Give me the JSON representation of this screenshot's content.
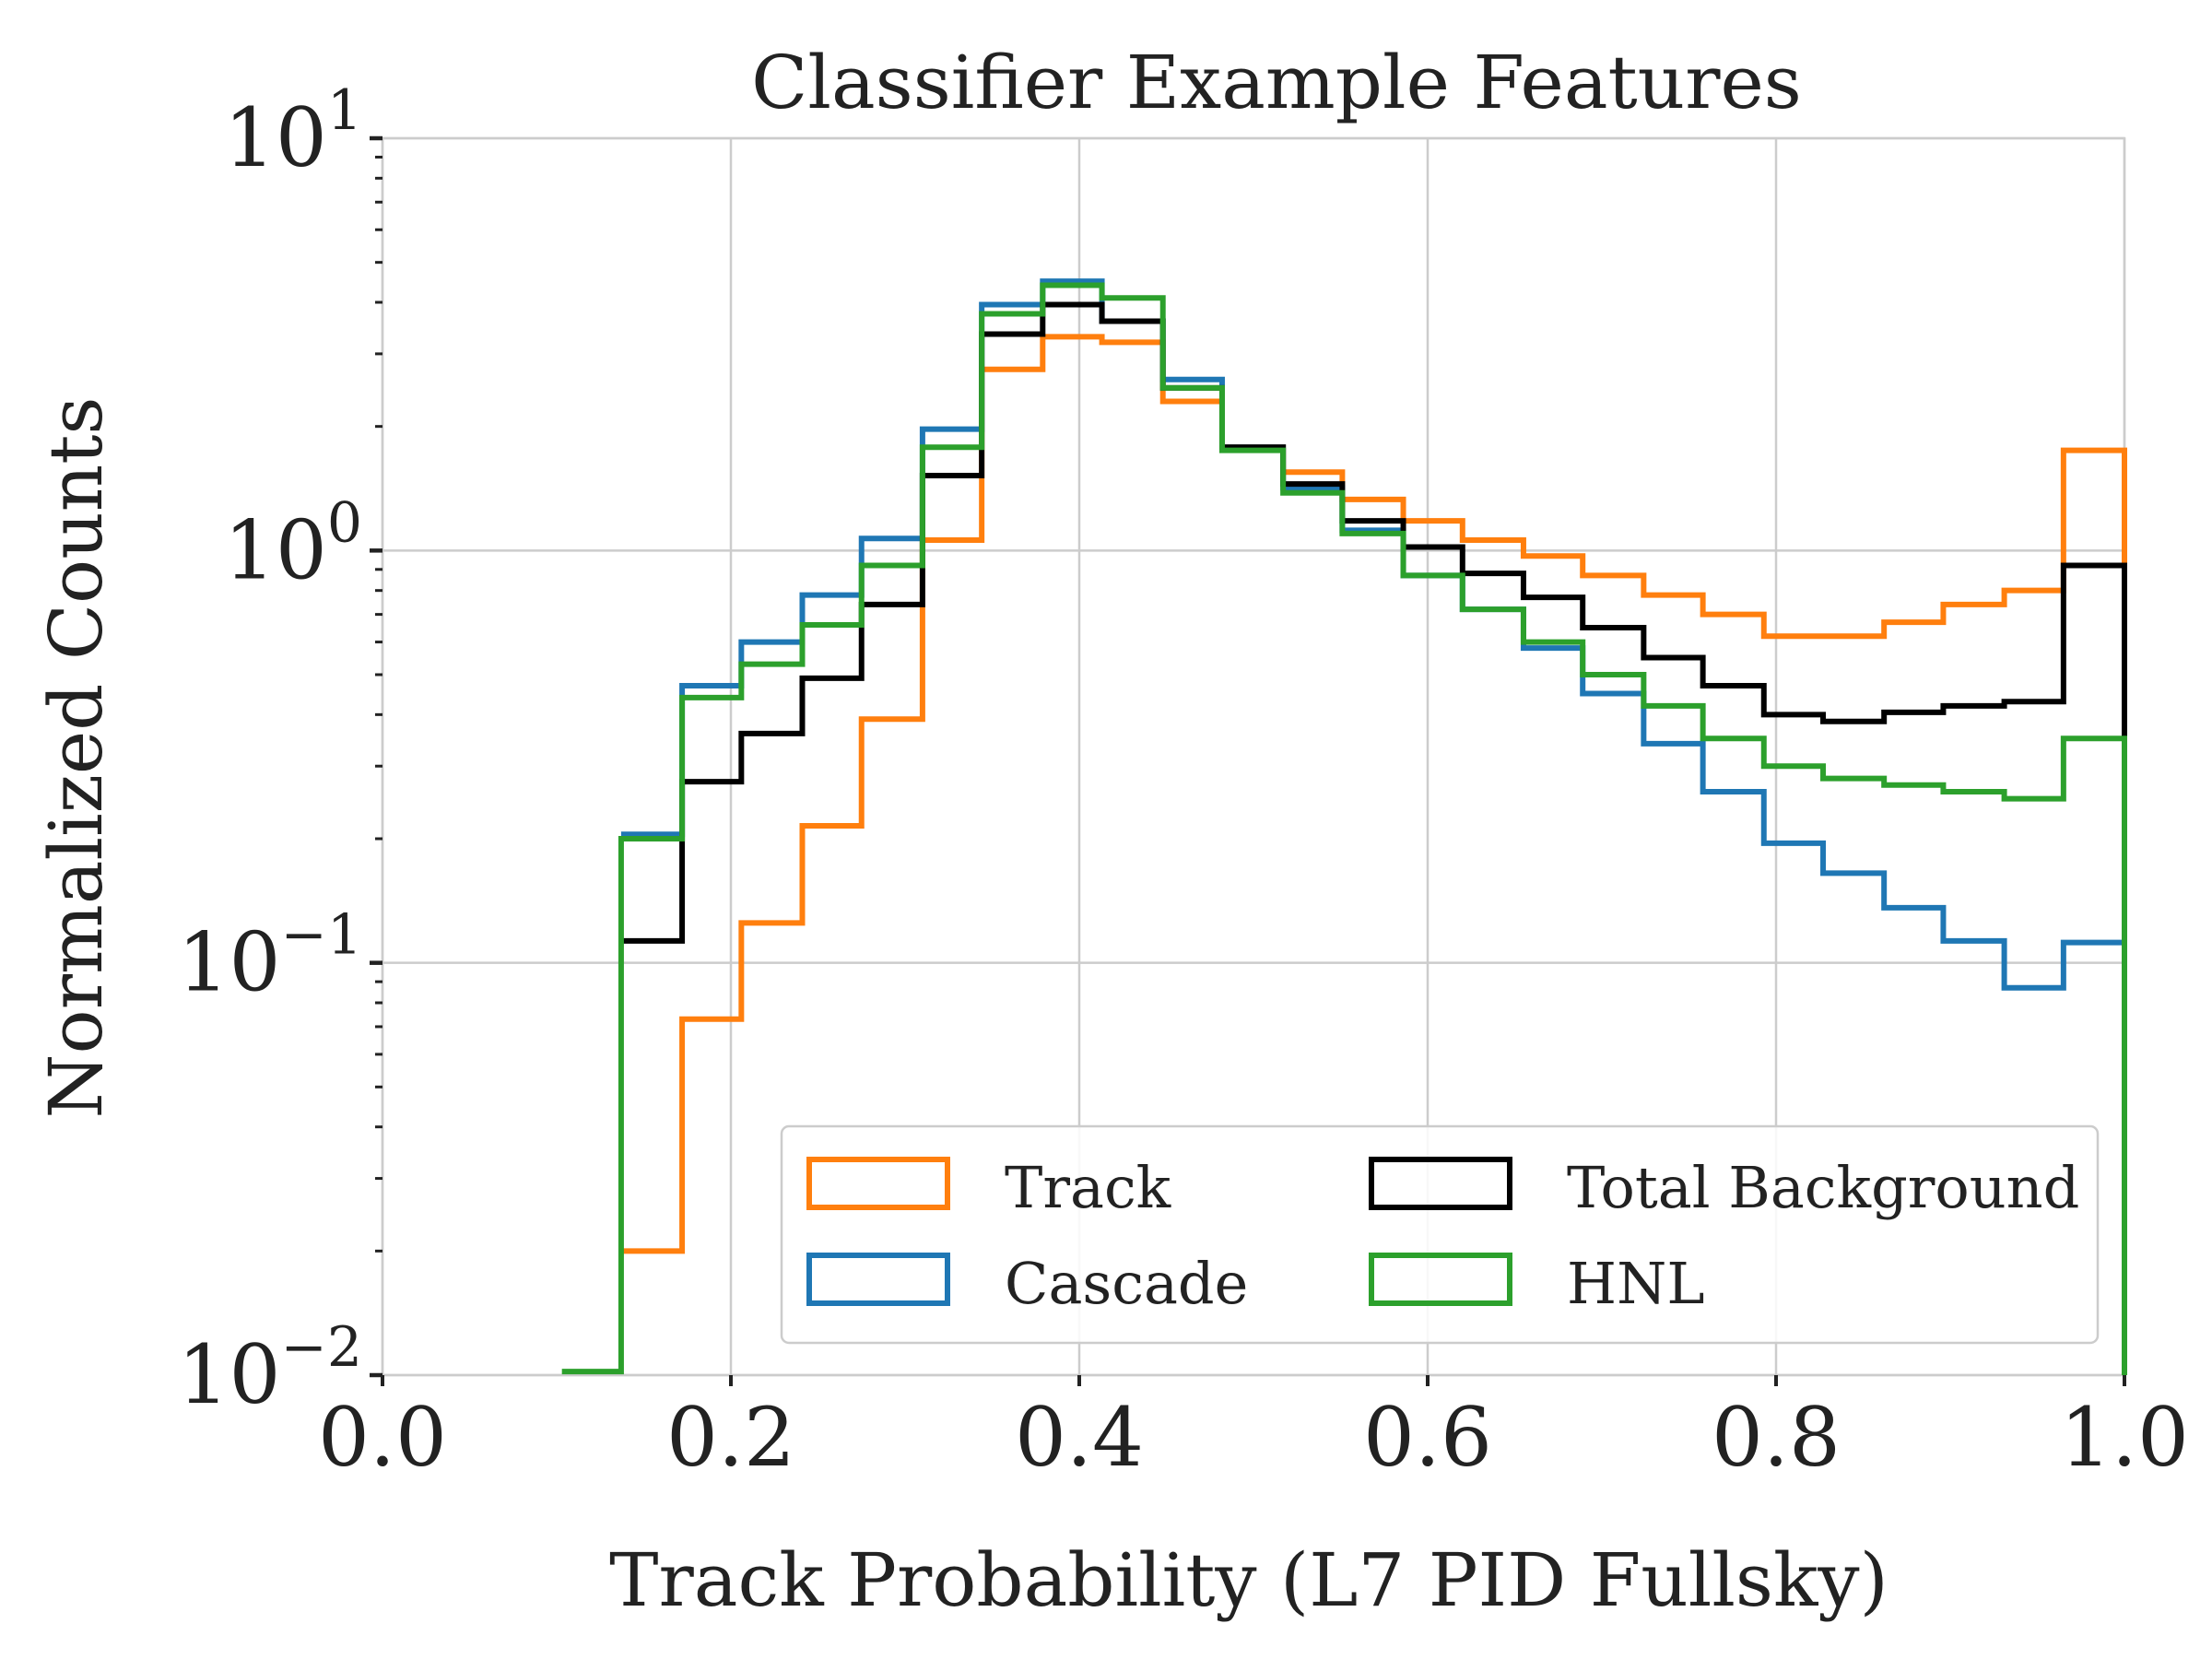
{
  "chart_data": {
    "type": "line",
    "title": "Classifier Example Features",
    "xlabel": "Track Probability (L7 PID Fullsky)",
    "ylabel": "Normalized Counts",
    "xlim": [
      0.0,
      1.0
    ],
    "ylim": [
      0.01,
      10
    ],
    "yscale": "log",
    "grid": true,
    "legend_position": "lower-right",
    "x_ticks": [
      "0.0",
      "0.2",
      "0.4",
      "0.6",
      "0.8",
      "1.0"
    ],
    "y_ticks": [
      {
        "base": "10",
        "exp": "1"
      },
      {
        "base": "10",
        "exp": "0"
      },
      {
        "base": "10",
        "exp": "−1"
      },
      {
        "base": "10",
        "exp": "−2"
      }
    ],
    "bin_edges": [
      0.103,
      0.137,
      0.172,
      0.206,
      0.241,
      0.275,
      0.31,
      0.344,
      0.379,
      0.413,
      0.448,
      0.482,
      0.517,
      0.551,
      0.586,
      0.62,
      0.655,
      0.689,
      0.724,
      0.758,
      0.793,
      0.827,
      0.862,
      0.896,
      0.931,
      0.965,
      1.0
    ],
    "series": [
      {
        "name": "Track",
        "color": "#ff7f0e",
        "values": [
          0,
          0.02,
          0.073,
          0.125,
          0.215,
          0.39,
          1.06,
          2.75,
          3.3,
          3.2,
          2.3,
          1.78,
          1.55,
          1.33,
          1.18,
          1.06,
          0.97,
          0.87,
          0.78,
          0.7,
          0.62,
          0.62,
          0.67,
          0.74,
          0.8,
          1.75
        ]
      },
      {
        "name": "Cascade",
        "color": "#1f77b4",
        "values": [
          0,
          0.205,
          0.47,
          0.6,
          0.78,
          1.07,
          1.97,
          3.95,
          4.5,
          3.6,
          2.6,
          1.78,
          1.42,
          1.12,
          0.87,
          0.72,
          0.58,
          0.45,
          0.34,
          0.26,
          0.195,
          0.165,
          0.136,
          0.113,
          0.087,
          0.112
        ]
      },
      {
        "name": "Total Background",
        "color": "#000000",
        "values": [
          0,
          0.113,
          0.275,
          0.36,
          0.49,
          0.74,
          1.52,
          3.35,
          3.95,
          3.6,
          2.48,
          1.78,
          1.45,
          1.18,
          1.02,
          0.88,
          0.77,
          0.65,
          0.55,
          0.47,
          0.4,
          0.385,
          0.405,
          0.42,
          0.43,
          0.92
        ]
      },
      {
        "name": "HNL",
        "color": "#2ca02c",
        "values": [
          0.0102,
          0.2,
          0.44,
          0.53,
          0.66,
          0.92,
          1.78,
          3.75,
          4.4,
          4.1,
          2.48,
          1.75,
          1.38,
          1.1,
          0.87,
          0.72,
          0.6,
          0.5,
          0.42,
          0.35,
          0.3,
          0.28,
          0.27,
          0.26,
          0.25,
          0.35
        ]
      }
    ],
    "legend_order": [
      "Track",
      "Total Background",
      "Cascade",
      "HNL"
    ]
  }
}
